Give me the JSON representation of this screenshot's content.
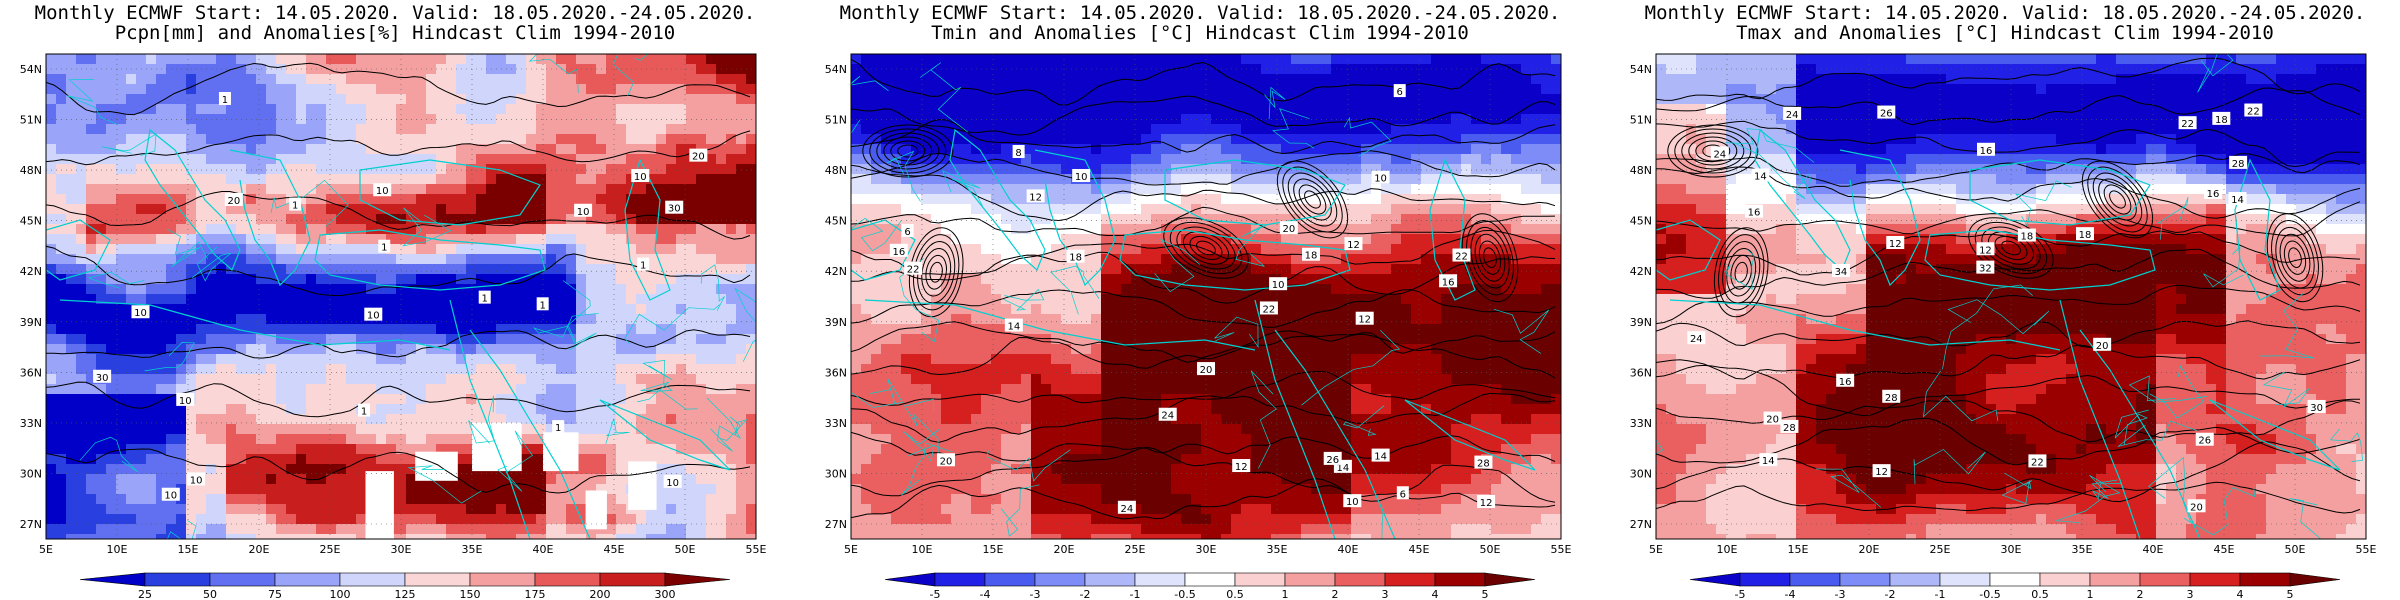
{
  "panels": [
    {
      "id": "precip",
      "title_line1": "Monthly ECMWF Start: 14.05.2020. Valid: 18.05.2020.-24.05.2020.",
      "title_line2": "Pcpn[mm] and Anomalies[%] Hindcast Clim 1994-2010",
      "colorbar_labels": [
        "25",
        "50",
        "75",
        "100",
        "125",
        "150",
        "175",
        "200",
        "300"
      ],
      "colorbar_colors": [
        "#0000c8",
        "#2a3fe0",
        "#6070f0",
        "#9aa4f8",
        "#d0d6fb",
        "#fbd6d6",
        "#f5a0a0",
        "#e85a5a",
        "#c81e1e",
        "#7a0000"
      ],
      "contour_labels": [
        "10",
        "10",
        "10",
        "20",
        "20",
        "30",
        "30",
        "10",
        "10",
        "10",
        "10",
        "1",
        "1",
        "1",
        "10",
        "10",
        "1",
        "1",
        "1",
        "1",
        "1"
      ]
    },
    {
      "id": "tmin",
      "title_line1": "Monthly ECMWF Start: 14.05.2020. Valid: 18.05.2020.-24.05.2020.",
      "title_line2": "Tmin and Anomalies [°C] Hindcast Clim 1994-2010",
      "colorbar_labels": [
        "-5",
        "-4",
        "-3",
        "-2",
        "-1",
        "-0.5",
        "0.5",
        "1",
        "2",
        "3",
        "4",
        "5"
      ],
      "colorbar_colors": [
        "#0a00c8",
        "#2020e6",
        "#4a5cf0",
        "#7d8cf6",
        "#aeb8f9",
        "#dfe3fc",
        "#ffffff",
        "#fbd0d0",
        "#f4a0a0",
        "#ea6060",
        "#d62020",
        "#9a0000",
        "#6a0000"
      ],
      "contour_labels": [
        "6",
        "6",
        "6",
        "8",
        "10",
        "10",
        "10",
        "12",
        "12",
        "12",
        "14",
        "14",
        "12",
        "16",
        "18",
        "20",
        "20",
        "22",
        "22",
        "24",
        "24",
        "26",
        "28",
        "22",
        "12",
        "14",
        "10",
        "20",
        "18",
        "16"
      ]
    },
    {
      "id": "tmax",
      "title_line1": "Monthly ECMWF Start: 14.05.2020. Valid: 18.05.2020.-24.05.2020.",
      "title_line2": "Tmax and Anomalies [°C] Hindcast Clim 1994-2010",
      "colorbar_labels": [
        "-5",
        "-4",
        "-3",
        "-2",
        "-1",
        "-0.5",
        "0.5",
        "1",
        "2",
        "3",
        "4",
        "5"
      ],
      "colorbar_colors": [
        "#0a00c8",
        "#2020e6",
        "#4a5cf0",
        "#7d8cf6",
        "#aeb8f9",
        "#dfe3fc",
        "#ffffff",
        "#fbd0d0",
        "#f4a0a0",
        "#ea6060",
        "#d62020",
        "#9a0000",
        "#6a0000"
      ],
      "contour_labels": [
        "12",
        "12",
        "14",
        "14",
        "16",
        "16",
        "18",
        "18",
        "20",
        "20",
        "22",
        "22",
        "24",
        "24",
        "26",
        "28",
        "28",
        "30",
        "32",
        "34",
        "16",
        "14",
        "12",
        "16",
        "18",
        "20",
        "22",
        "24",
        "26",
        "28"
      ]
    }
  ],
  "axes": {
    "lon_labels": [
      "5E",
      "10E",
      "15E",
      "20E",
      "25E",
      "30E",
      "35E",
      "40E",
      "45E",
      "50E",
      "55E"
    ],
    "lat_labels": [
      "54N",
      "51N",
      "48N",
      "45N",
      "42N",
      "39N",
      "36N",
      "33N",
      "30N",
      "27N"
    ]
  }
}
